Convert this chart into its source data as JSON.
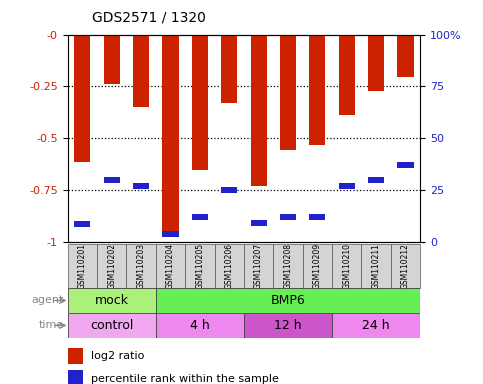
{
  "title": "GDS2571 / 1320",
  "samples": [
    "GSM110201",
    "GSM110202",
    "GSM110203",
    "GSM110204",
    "GSM110205",
    "GSM110206",
    "GSM110207",
    "GSM110208",
    "GSM110209",
    "GSM110210",
    "GSM110211",
    "GSM110212"
  ],
  "log2_ratio": [
    -0.615,
    -0.24,
    -0.35,
    -0.945,
    -0.655,
    -0.33,
    -0.73,
    -0.555,
    -0.535,
    -0.39,
    -0.27,
    -0.205
  ],
  "percentile_rank": [
    8.5,
    30,
    27,
    4,
    12,
    25,
    9,
    12,
    12,
    27,
    30,
    37
  ],
  "bar_color": "#cc2200",
  "percentile_color": "#2222cc",
  "ylim_left": [
    -1.0,
    0.0
  ],
  "ylim_right": [
    0,
    100
  ],
  "yticks_left": [
    0.0,
    -0.25,
    -0.5,
    -0.75,
    -1.0
  ],
  "yticks_right": [
    0,
    25,
    50,
    75,
    100
  ],
  "ytick_labels_left": [
    "-0",
    "-0.25",
    "-0.5",
    "-0.75",
    "-1"
  ],
  "ytick_labels_right": [
    "0",
    "25",
    "50",
    "75",
    "100%"
  ],
  "agent_groups": [
    {
      "label": "mock",
      "start": 0,
      "end": 3,
      "color": "#aaf07a"
    },
    {
      "label": "BMP6",
      "start": 3,
      "end": 12,
      "color": "#66ee55"
    }
  ],
  "time_groups": [
    {
      "label": "control",
      "start": 0,
      "end": 3,
      "color": "#f0a8f0"
    },
    {
      "label": "4 h",
      "start": 3,
      "end": 6,
      "color": "#ee88ee"
    },
    {
      "label": "12 h",
      "start": 6,
      "end": 9,
      "color": "#cc55cc"
    },
    {
      "label": "24 h",
      "start": 9,
      "end": 12,
      "color": "#ee88ee"
    }
  ],
  "legend_red_label": "log2 ratio",
  "legend_blue_label": "percentile rank within the sample",
  "agent_label": "agent",
  "time_label": "time",
  "bar_width": 0.55,
  "tick_color_left": "#cc2200",
  "tick_color_right": "#2222cc",
  "label_color": "#888888",
  "dotted_lines": [
    -0.25,
    -0.5,
    -0.75
  ],
  "figsize": [
    4.83,
    3.84
  ],
  "dpi": 100
}
